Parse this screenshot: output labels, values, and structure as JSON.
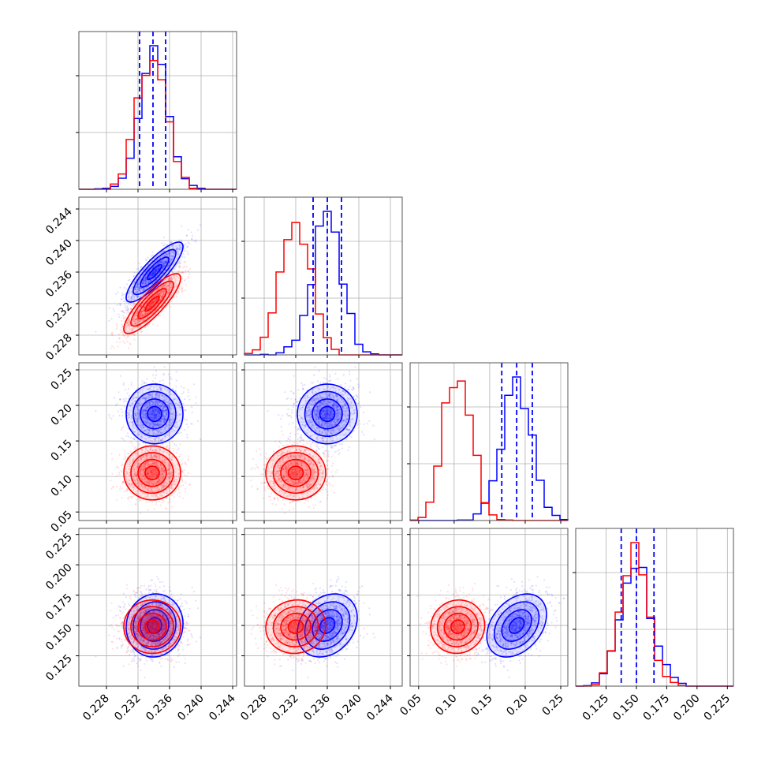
{
  "chart_data": {
    "type": "corner",
    "grid": true,
    "dimensions": 4,
    "colors": {
      "series_a": "#0000ff",
      "series_b": "#ff0000",
      "quantile_lines": "#0000ff"
    },
    "axes": [
      {
        "range": [
          0.2245,
          0.2445
        ],
        "ticks": [
          0.228,
          0.232,
          0.236,
          0.24,
          0.244
        ],
        "tick_labels": [
          "0.228",
          "0.232",
          "0.236",
          "0.240",
          "0.244"
        ]
      },
      {
        "range": [
          0.2255,
          0.2455
        ],
        "ticks": [
          0.228,
          0.232,
          0.236,
          0.24,
          0.244
        ],
        "tick_labels": [
          "0.228",
          "0.232",
          "0.236",
          "0.240",
          "0.244"
        ]
      },
      {
        "range": [
          0.038,
          0.26
        ],
        "ticks": [
          0.05,
          0.1,
          0.15,
          0.2,
          0.25
        ],
        "tick_labels": [
          "0.05",
          "0.10",
          "0.15",
          "0.20",
          "0.25"
        ]
      },
      {
        "range": [
          0.1,
          0.23
        ],
        "ticks": [
          0.125,
          0.15,
          0.175,
          0.2,
          0.225
        ],
        "tick_labels": [
          "0.125",
          "0.150",
          "0.175",
          "0.200",
          "0.225"
        ]
      }
    ],
    "series": [
      {
        "key": "blue",
        "color": "#0000ff",
        "mean": [
          0.2341,
          0.236,
          0.188,
          0.15
        ],
        "std": [
          0.0018,
          0.0019,
          0.021,
          0.013
        ],
        "correlation": [
          [
            1,
            0.85,
            0.0,
            0.05
          ],
          [
            0.85,
            1,
            0.0,
            0.25
          ],
          [
            0.0,
            0.0,
            1,
            0.35
          ],
          [
            0.05,
            0.25,
            0.35,
            1
          ]
        ],
        "quantiles_16_50_84": [
          [
            0.2322,
            0.2339,
            0.2355
          ],
          [
            0.2342,
            0.236,
            0.2378
          ],
          [
            0.167,
            0.188,
            0.21
          ],
          [
            0.1375,
            0.15,
            0.1645
          ]
        ]
      },
      {
        "key": "red",
        "color": "#ff0000",
        "mean": [
          0.2338,
          0.232,
          0.105,
          0.149
        ],
        "std": [
          0.0018,
          0.0019,
          0.019,
          0.011
        ],
        "correlation": [
          [
            1,
            0.85,
            0.0,
            0.0
          ],
          [
            0.85,
            1,
            0.0,
            0.05
          ],
          [
            0.0,
            0.0,
            1,
            0.05
          ],
          [
            0.0,
            0.05,
            0.05,
            1
          ]
        ]
      }
    ]
  }
}
